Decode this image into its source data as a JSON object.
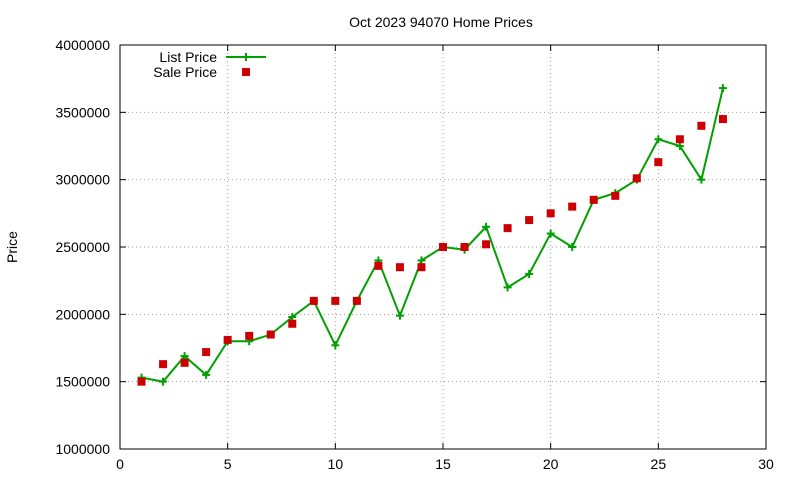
{
  "chart_data": {
    "type": "line",
    "title": "Oct 2023 94070 Home Prices",
    "xlabel": "",
    "ylabel": "Price",
    "xlim": [
      0,
      30
    ],
    "ylim": [
      1000000,
      4000000
    ],
    "xticks": [
      0,
      5,
      10,
      15,
      20,
      25,
      30
    ],
    "yticks": [
      1000000,
      1500000,
      2000000,
      2500000,
      3000000,
      3500000,
      4000000
    ],
    "grid": true,
    "legend_position": "top-left",
    "series": [
      {
        "name": "List Price",
        "style": "line-with-plus-markers",
        "color": "#00a000",
        "x": [
          1,
          2,
          3,
          4,
          5,
          6,
          7,
          8,
          9,
          10,
          11,
          12,
          13,
          14,
          15,
          16,
          17,
          18,
          19,
          20,
          21,
          22,
          23,
          24,
          25,
          26,
          27,
          28
        ],
        "values": [
          1530000,
          1500000,
          1690000,
          1550000,
          1800000,
          1800000,
          1850000,
          1980000,
          2100000,
          1770000,
          2100000,
          2400000,
          1990000,
          2400000,
          2500000,
          2480000,
          2650000,
          2200000,
          2300000,
          2600000,
          2500000,
          2850000,
          2900000,
          3000000,
          3300000,
          3250000,
          3000000,
          3680000
        ]
      },
      {
        "name": "Sale Price",
        "style": "square-markers",
        "color": "#cc0000",
        "x": [
          1,
          2,
          3,
          4,
          5,
          6,
          7,
          8,
          9,
          10,
          11,
          12,
          13,
          14,
          15,
          16,
          17,
          18,
          19,
          20,
          21,
          22,
          23,
          24,
          25,
          26,
          27,
          28
        ],
        "values": [
          1500000,
          1630000,
          1640000,
          1720000,
          1810000,
          1840000,
          1850000,
          1930000,
          2100000,
          2100000,
          2100000,
          2360000,
          2350000,
          2350000,
          2500000,
          2500000,
          2520000,
          2640000,
          2700000,
          2750000,
          2800000,
          2850000,
          2880000,
          3010000,
          3130000,
          3300000,
          3400000,
          3450000
        ]
      }
    ]
  }
}
